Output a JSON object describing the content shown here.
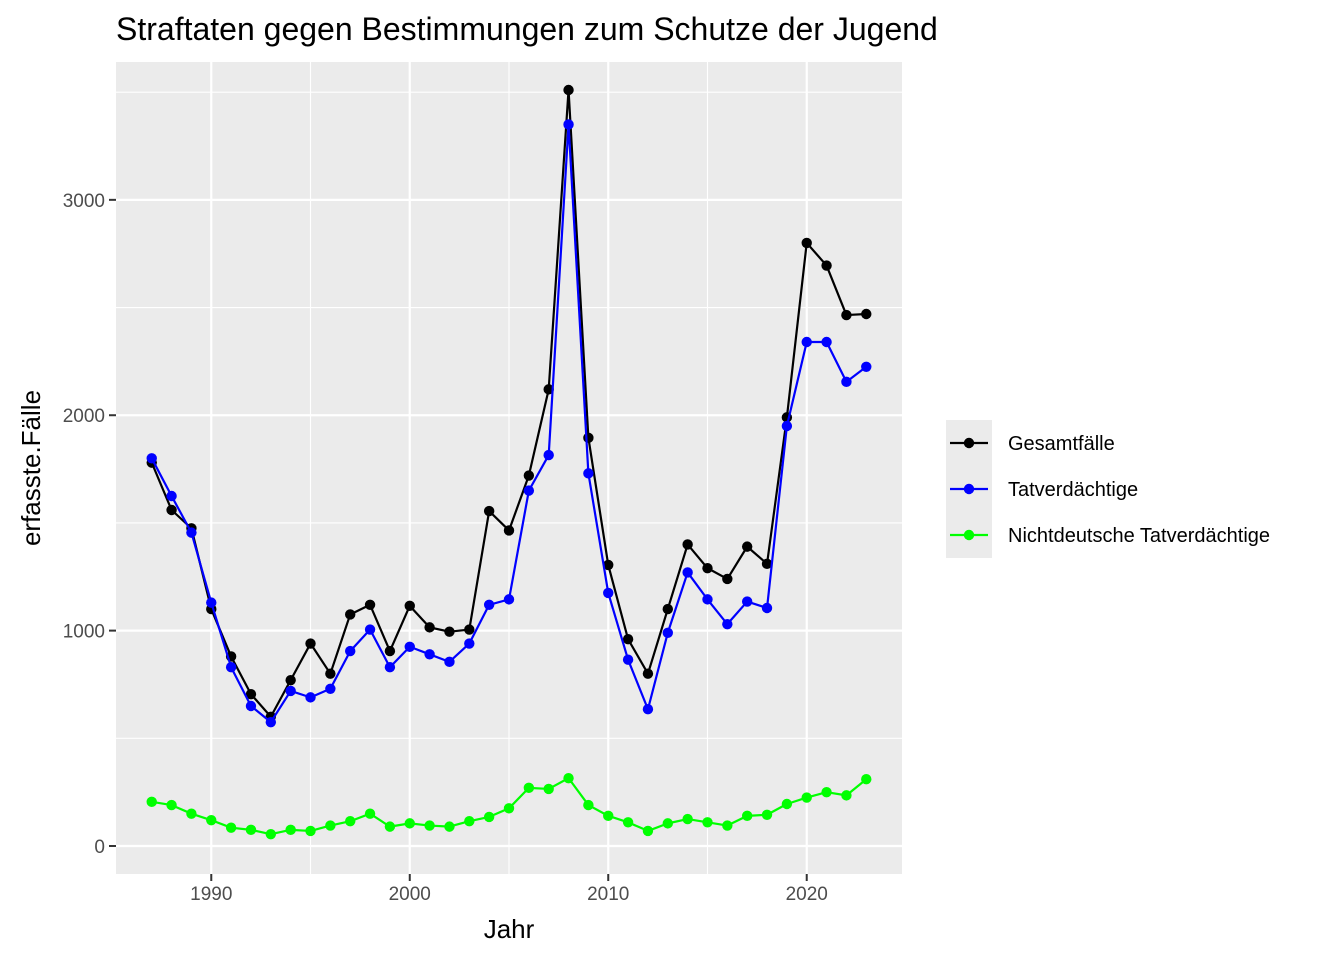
{
  "chart_data": {
    "type": "line",
    "title": "Straftaten gegen Bestimmungen zum Schutze der Jugend",
    "xlabel": "Jahr",
    "ylabel": "erfasste.Fälle",
    "xlim": [
      1985.2,
      2024.8
    ],
    "ylim": [
      -130,
      3640
    ],
    "x_ticks": [
      1990,
      2000,
      2010,
      2020
    ],
    "y_ticks": [
      0,
      1000,
      2000,
      3000
    ],
    "x_tick_labels": [
      "1990",
      "2000",
      "2010",
      "2020"
    ],
    "y_tick_labels": [
      "0",
      "1000",
      "2000",
      "3000"
    ],
    "grid": true,
    "legend_position": "right",
    "x": [
      1987,
      1988,
      1989,
      1990,
      1991,
      1992,
      1993,
      1994,
      1995,
      1996,
      1997,
      1998,
      1999,
      2000,
      2001,
      2002,
      2003,
      2004,
      2005,
      2006,
      2007,
      2008,
      2009,
      2010,
      2011,
      2012,
      2013,
      2014,
      2015,
      2016,
      2017,
      2018,
      2019,
      2020,
      2021,
      2022,
      2023
    ],
    "series": [
      {
        "name": "Gesamtfälle",
        "color": "#000000",
        "values": [
          1780,
          1560,
          1475,
          1100,
          880,
          705,
          600,
          770,
          940,
          800,
          1075,
          1120,
          905,
          1115,
          1015,
          995,
          1005,
          1555,
          1465,
          1720,
          2120,
          3510,
          1895,
          1305,
          960,
          800,
          1100,
          1400,
          1290,
          1240,
          1390,
          1310,
          1990,
          2800,
          2695,
          2465,
          2470
        ]
      },
      {
        "name": "Tatverdächtige",
        "color": "#0000ff",
        "values": [
          1800,
          1625,
          1455,
          1130,
          830,
          650,
          575,
          720,
          690,
          730,
          905,
          1005,
          830,
          925,
          890,
          855,
          940,
          1120,
          1145,
          1650,
          1815,
          3350,
          1730,
          1175,
          865,
          635,
          990,
          1270,
          1145,
          1030,
          1135,
          1105,
          1950,
          2340,
          2340,
          2155,
          2225
        ]
      },
      {
        "name": "Nichtdeutsche Tatverdächtige",
        "color": "#00ff00",
        "values": [
          205,
          190,
          150,
          120,
          85,
          75,
          55,
          75,
          70,
          95,
          115,
          150,
          90,
          105,
          95,
          90,
          115,
          135,
          175,
          270,
          265,
          315,
          190,
          140,
          110,
          70,
          105,
          125,
          110,
          95,
          140,
          145,
          195,
          225,
          250,
          235,
          310
        ]
      }
    ]
  }
}
